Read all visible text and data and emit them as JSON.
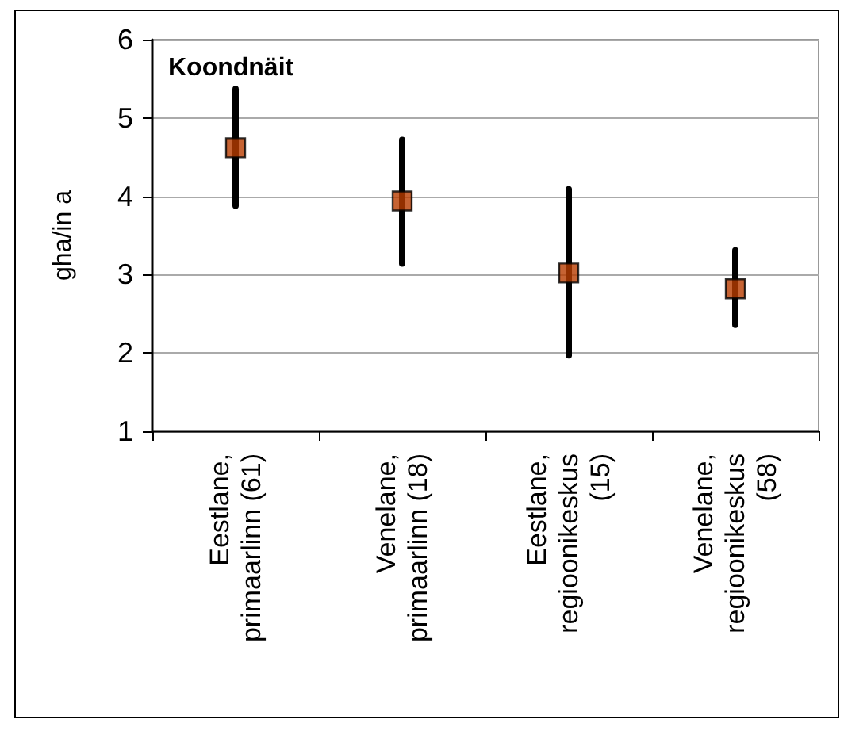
{
  "chart_data": {
    "type": "scatter",
    "title": "Koondnäit",
    "ylabel": "gha/in a",
    "categories": [
      "Eestlane, primaarlinn (61)",
      "Venelane, primaarlinn (18)",
      "Eestlane, regioonikeskus (15)",
      "Venelane, regioonikeskus (58)"
    ],
    "values": [
      4.62,
      3.94,
      3.02,
      2.82
    ],
    "errors": [
      [
        3.88,
        5.37
      ],
      [
        3.14,
        4.72
      ],
      [
        1.97,
        4.09
      ],
      [
        2.36,
        3.31
      ]
    ],
    "color": "#b83c00",
    "marker": "square",
    "ylim": [
      1,
      6
    ],
    "yticks": [
      1,
      2,
      3,
      4,
      5,
      6
    ],
    "grid": "y"
  }
}
